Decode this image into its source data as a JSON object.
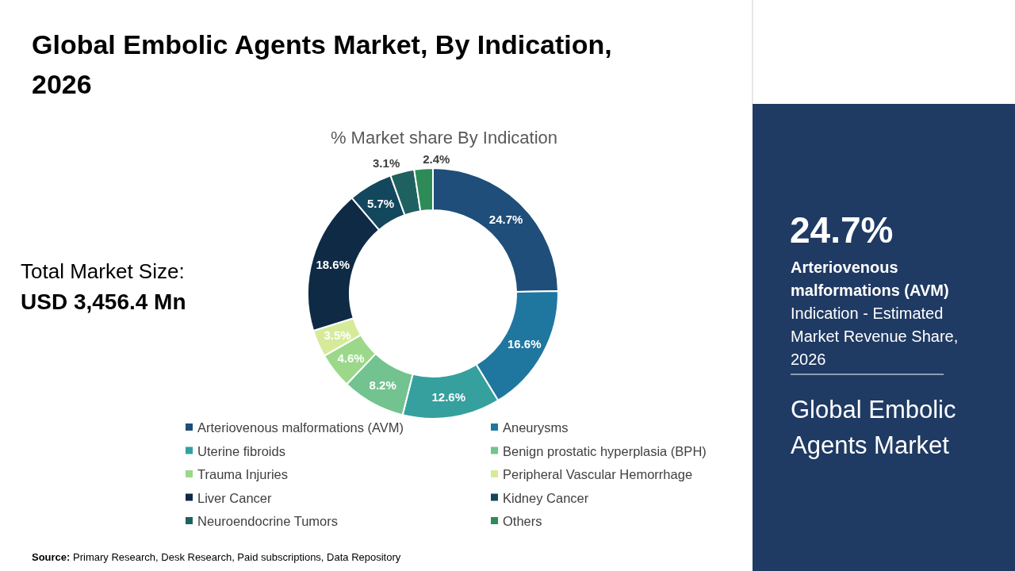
{
  "chart_data": {
    "type": "donut",
    "title": "Global Embolic Agents Market, By Indication, 2026",
    "subtitle": "% Market share By Indication",
    "categories": [
      "Arteriovenous malformations (AVM)",
      "Aneurysms",
      "Uterine fibroids",
      "Benign prostatic hyperplasia (BPH)",
      "Trauma Injuries",
      "Peripheral Vascular Hemorrhage",
      "Liver Cancer",
      "Kidney Cancer",
      "Neuroendocrine Tumors",
      "Others"
    ],
    "values": [
      24.7,
      16.6,
      12.6,
      8.2,
      4.6,
      3.5,
      18.6,
      5.7,
      3.1,
      2.4
    ],
    "value_labels": [
      "24.7%",
      "16.6%",
      "12.6%",
      "8.2%",
      "4.6%",
      "3.5%",
      "18.6%",
      "5.7%",
      "3.1%",
      "2.4%"
    ],
    "colors": [
      "#1e4e79",
      "#1f77a0",
      "#35a09e",
      "#72c38f",
      "#9bd88a",
      "#d6eb9a",
      "#0e2a45",
      "#12475e",
      "#1f6160",
      "#2e8b57"
    ],
    "legend": "bottom",
    "annotations": [
      "Total Market Size:",
      "USD 3,456.4 Mn",
      "24.7%",
      "Arteriovenous malformations (AVM)",
      "Indication - Estimated Market Revenue Share, 2026",
      "Global Embolic Agents Market",
      "Source: Primary Research, Desk Research, Paid subscriptions, Data Repository"
    ]
  }
}
